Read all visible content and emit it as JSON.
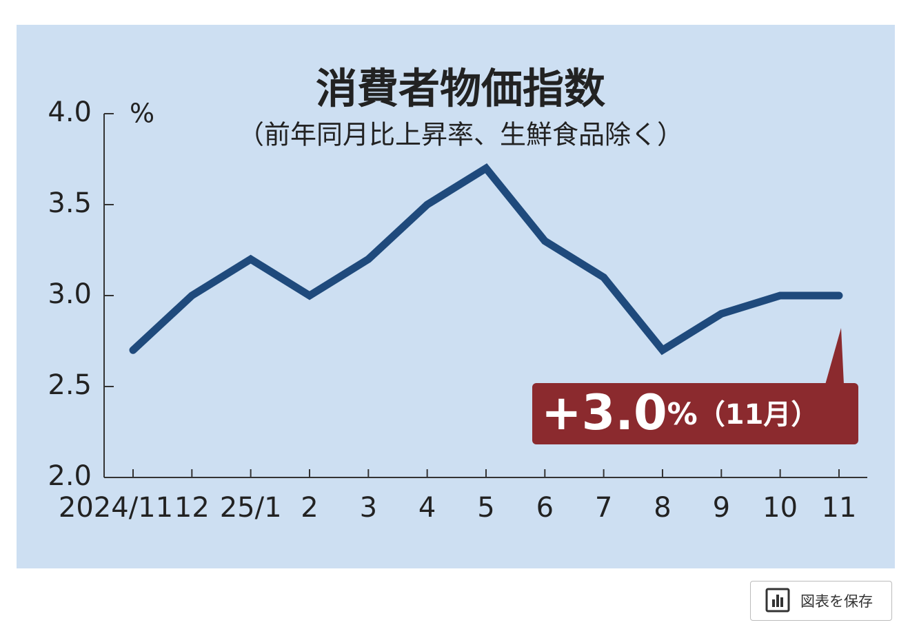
{
  "chart_data": {
    "type": "line",
    "title": "消費者物価指数",
    "subtitle": "（前年同月比上昇率、生鮮食品除く）",
    "y_unit": "%",
    "categories": [
      "2024/11",
      "12",
      "25/1",
      "2",
      "3",
      "4",
      "5",
      "6",
      "7",
      "8",
      "9",
      "10",
      "11"
    ],
    "series": [
      {
        "color": "#1f4a7c",
        "values": [
          2.7,
          3.0,
          3.2,
          3.0,
          3.2,
          3.5,
          3.7,
          3.3,
          3.1,
          2.7,
          2.9,
          3.0,
          3.0
        ]
      }
    ],
    "ylim": [
      2,
      4
    ],
    "yticks": [
      {
        "value": 2,
        "label": "2.0"
      },
      2.5,
      {
        "value": 3,
        "label": "3.0"
      },
      3.5,
      {
        "value": 4,
        "label": "4.0"
      }
    ],
    "annotation": {
      "value_text": "+3.0",
      "unit": "%",
      "period": "（11月）",
      "color": "#8b2a2e"
    }
  },
  "ui": {
    "save_button": "図表を保存"
  }
}
